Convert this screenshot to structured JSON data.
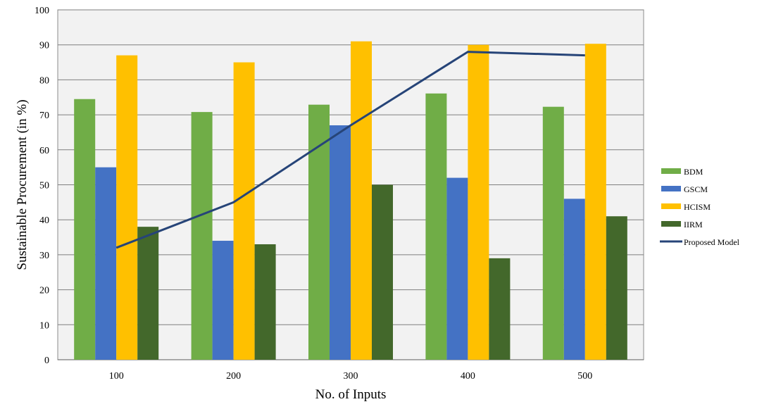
{
  "chart_data": {
    "type": "bar",
    "categories": [
      "100",
      "200",
      "300",
      "400",
      "500"
    ],
    "series": [
      {
        "name": "BDM",
        "kind": "bar",
        "color": "#70ad47",
        "values": [
          74.5,
          70.8,
          72.9,
          76.1,
          72.3
        ]
      },
      {
        "name": "GSCM",
        "kind": "bar",
        "color": "#4472c4",
        "values": [
          55,
          34,
          67,
          52,
          46
        ]
      },
      {
        "name": "HCISM",
        "kind": "bar",
        "color": "#ffc000",
        "values": [
          87,
          85,
          91,
          90,
          90.3
        ]
      },
      {
        "name": "IIRM",
        "kind": "bar",
        "color": "#43682b",
        "values": [
          38,
          33,
          50,
          29,
          41
        ]
      },
      {
        "name": "Proposed Model",
        "kind": "line",
        "color": "#264478",
        "values": [
          32,
          45,
          67,
          88,
          87
        ]
      }
    ],
    "xlabel": "No. of Inputs",
    "ylabel": "Sustainable Procurement  (in %)",
    "ylim": [
      0,
      100
    ],
    "yticks": [
      0,
      10,
      20,
      30,
      40,
      50,
      60,
      70,
      80,
      90,
      100
    ],
    "grid": true,
    "plot_background": "#f2f2f2",
    "legend_position": "right"
  }
}
